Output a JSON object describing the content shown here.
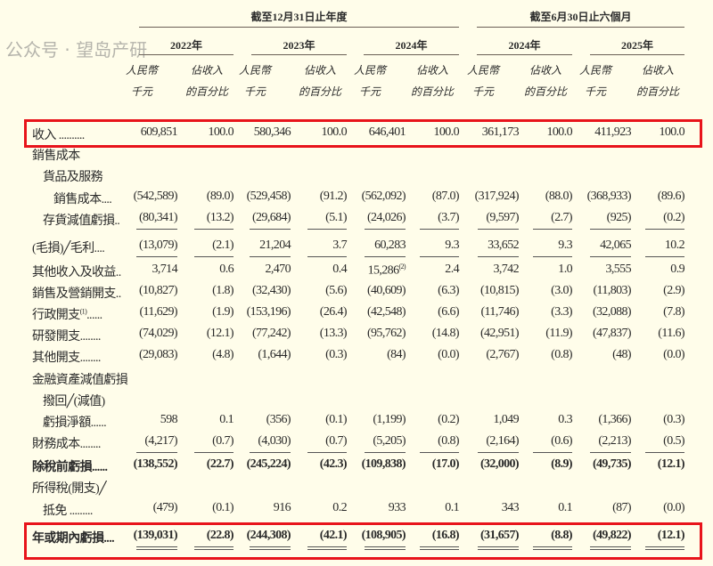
{
  "header": {
    "group_full_year": "截至12月31日止年度",
    "group_six_months": "截至6月30日止六個月",
    "years": [
      "2022年",
      "2023年",
      "2024年",
      "2024年",
      "2025年"
    ],
    "unit_rmb_line1": "人民幣",
    "unit_rmb_line2": "千元",
    "unit_pct_line1": "佔收入",
    "unit_pct_line2": "的百分比"
  },
  "rows": [
    {
      "label": "收入 ..........",
      "values": [
        "609,851",
        "100.0",
        "580,346",
        "100.0",
        "646,401",
        "100.0",
        "361,173",
        "100.0",
        "411,923",
        "100.0"
      ],
      "highlight": true
    },
    {
      "label": "銷售成本",
      "values": []
    },
    {
      "label": "貨品及服務",
      "values": [],
      "indent": 1
    },
    {
      "label": "銷售成本....",
      "values": [
        "(542,589)",
        "(89.0)",
        "(529,458)",
        "(91.2)",
        "(562,092)",
        "(87.0)",
        "(317,924)",
        "(88.0)",
        "(368,933)",
        "(89.6)"
      ],
      "indent": 2
    },
    {
      "label": "存貨減值虧損..",
      "values": [
        "(80,341)",
        "(13.2)",
        "(29,684)",
        "(5.1)",
        "(24,026)",
        "(3.7)",
        "(9,597)",
        "(2.7)",
        "(925)",
        "(0.2)"
      ],
      "indent": 1,
      "underline": "single"
    },
    {
      "label": "(毛損)╱毛利....",
      "values": [
        "(13,079)",
        "(2.1)",
        "21,204",
        "3.7",
        "60,283",
        "9.3",
        "33,652",
        "9.3",
        "42,065",
        "10.2"
      ],
      "underline": "single"
    },
    {
      "label": "其他收入及收益..",
      "values": [
        "3,714",
        "0.6",
        "2,470",
        "0.4",
        "15,286",
        "2.4",
        "3,742",
        "1.0",
        "3,555",
        "0.9"
      ],
      "notes": {
        "4": "(2)"
      }
    },
    {
      "label": "銷售及營銷開支..",
      "values": [
        "(10,827)",
        "(1.8)",
        "(32,430)",
        "(5.6)",
        "(40,609)",
        "(6.3)",
        "(10,815)",
        "(3.0)",
        "(11,803)",
        "(2.9)"
      ]
    },
    {
      "label": "行政開支",
      "label_note": "(1)",
      "label_suffix": "......",
      "values": [
        "(11,629)",
        "(1.9)",
        "(153,196)",
        "(26.4)",
        "(42,548)",
        "(6.6)",
        "(11,746)",
        "(3.3)",
        "(32,088)",
        "(7.8)"
      ]
    },
    {
      "label": "研發開支........",
      "values": [
        "(74,029)",
        "(12.1)",
        "(77,242)",
        "(13.3)",
        "(95,762)",
        "(14.8)",
        "(42,951)",
        "(11.9)",
        "(47,837)",
        "(11.6)"
      ]
    },
    {
      "label": "其他開支........",
      "values": [
        "(29,083)",
        "(4.8)",
        "(1,644)",
        "(0.3)",
        "(84)",
        "(0.0)",
        "(2,767)",
        "(0.8)",
        "(48)",
        "(0.0)"
      ]
    },
    {
      "label": "金融資產減值虧損",
      "values": []
    },
    {
      "label": "撥回╱(減值)",
      "values": [],
      "indent": 1
    },
    {
      "label": "虧損淨額......",
      "values": [
        "598",
        "0.1",
        "(356)",
        "(0.1)",
        "(1,199)",
        "(0.2)",
        "1,049",
        "0.3",
        "(1,366)",
        "(0.3)"
      ],
      "indent": 1
    },
    {
      "label": "財務成本........",
      "values": [
        "(4,217)",
        "(0.7)",
        "(4,030)",
        "(0.7)",
        "(5,205)",
        "(0.8)",
        "(2,164)",
        "(0.6)",
        "(2,213)",
        "(0.5)"
      ],
      "underline": "single"
    },
    {
      "label": "除稅前虧損......",
      "values": [
        "(138,552)",
        "(22.7)",
        "(245,224)",
        "(42.3)",
        "(109,838)",
        "(17.0)",
        "(32,000)",
        "(8.9)",
        "(49,735)",
        "(12.1)"
      ],
      "bold": true
    },
    {
      "label": "所得稅(開支)╱",
      "values": []
    },
    {
      "label": "抵免 .........",
      "values": [
        "(479)",
        "(0.1)",
        "916",
        "0.2",
        "933",
        "0.1",
        "343",
        "0.1",
        "(87)",
        "(0.0)"
      ],
      "indent": 1
    },
    {
      "label": "年或期內虧損....",
      "values": [
        "(139,031)",
        "(22.8)",
        "(244,308)",
        "(42.1)",
        "(108,905)",
        "(16.8)",
        "(31,657)",
        "(8.8)",
        "(49,822)",
        "(12.1)"
      ],
      "bold": true,
      "highlight": true,
      "underline": "double"
    }
  ],
  "watermark": "公众号 · 望岛产研",
  "colors": {
    "background": "#fffdea",
    "highlight_border": "#e8141b",
    "text": "#2a2a2a"
  }
}
